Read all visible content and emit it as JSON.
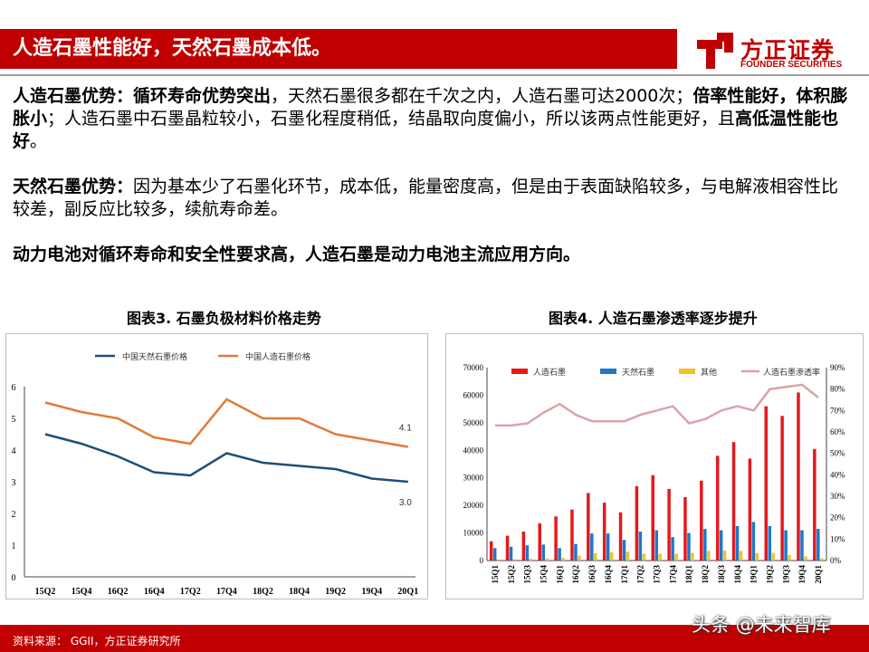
{
  "header": {
    "title": "人造石墨性能好，天然石墨成本低。",
    "logo_name": "方正证券",
    "logo_en": "FOUNDER SECURITIES"
  },
  "body": {
    "p1_b1": "人造石墨优势：",
    "p1_b2": "循环寿命优势突出",
    "p1_t1": "，天然石墨很多都在千次之内，人造石墨可达2000次；",
    "p1_b3": "倍率性能好，体积膨胀小",
    "p1_t2": "；人造石墨中石墨晶粒较小，石墨化程度稍低，结晶取向度偏小，所以该两点性能更好，且",
    "p1_b4": "高低温性能也好",
    "p1_t3": "。",
    "p2_b1": "天然石墨优势：",
    "p2_t1": "因为基本少了石墨化环节，成本低，能量密度高，但是由于表面缺陷较多，与电解液相容性比较差，副反应比较多，续航寿命差。",
    "p3_b1": "动力电池对循环寿命和安全性要求高，人造石墨是动力电池主流应用方向。"
  },
  "figure3": {
    "title": "图表3. 石墨负极材料价格走势"
  },
  "figure4": {
    "title": "图表4. 人造石墨渗透率逐步提升"
  },
  "footer": {
    "source": "资料来源： GGII，方正证券研究所",
    "watermark": "头条 @未来智库"
  },
  "colors": {
    "brand_red": "#c00000",
    "natural_line": "#1f4e79",
    "artificial_line": "#e07b39",
    "bar_artificial": "#e31a1c",
    "bar_natural": "#1f78c8",
    "bar_other": "#f2c12e",
    "penetration_line": "#d9a4a8"
  },
  "chart_data": [
    {
      "type": "line",
      "categories": [
        "15Q2",
        "15Q4",
        "16Q2",
        "16Q4",
        "17Q2",
        "17Q4",
        "18Q2",
        "18Q4",
        "19Q2",
        "19Q4",
        "20Q1"
      ],
      "series": [
        {
          "name": "中国天然石墨价格",
          "values": [
            4.5,
            4.2,
            3.8,
            3.3,
            3.2,
            3.9,
            3.6,
            3.5,
            3.4,
            3.1,
            3.0
          ]
        },
        {
          "name": "中国人造石墨价格",
          "values": [
            5.5,
            5.2,
            5.0,
            4.4,
            4.2,
            5.6,
            5.0,
            5.0,
            4.5,
            4.3,
            4.1
          ]
        }
      ],
      "ylim": [
        0,
        6
      ],
      "yticks": [
        "0",
        "1",
        "2",
        "3",
        "4",
        "5",
        "6"
      ],
      "end_labels": [
        "3.0",
        "4.1"
      ],
      "legend": "top",
      "grid": false
    },
    {
      "type": "bar",
      "categories": [
        "15Q1",
        "15Q2",
        "15Q3",
        "15Q4",
        "16Q1",
        "16Q2",
        "16Q3",
        "16Q4",
        "17Q1",
        "17Q2",
        "17Q3",
        "17Q4",
        "18Q1",
        "18Q2",
        "18Q3",
        "18Q4",
        "19Q1",
        "19Q2",
        "19Q3",
        "19Q4",
        "20Q1"
      ],
      "series": [
        {
          "name": "人造石墨",
          "type": "bar",
          "values": [
            7000,
            9000,
            10500,
            13500,
            16000,
            18500,
            24500,
            21000,
            17500,
            27000,
            31000,
            26000,
            23000,
            29000,
            38000,
            43000,
            37000,
            56000,
            52500,
            61000,
            40500
          ]
        },
        {
          "name": "天然石墨",
          "type": "bar",
          "values": [
            4500,
            5000,
            5500,
            5800,
            4500,
            6000,
            9800,
            9800,
            7500,
            10500,
            11000,
            8500,
            10000,
            11500,
            11000,
            12500,
            14000,
            12500,
            11000,
            11000,
            11500
          ]
        },
        {
          "name": "其他",
          "type": "bar",
          "values": [
            400,
            500,
            600,
            800,
            1000,
            1800,
            2700,
            3000,
            3200,
            2500,
            2500,
            2500,
            2800,
            3500,
            3600,
            3500,
            2700,
            2800,
            2000,
            1500,
            800
          ]
        },
        {
          "name": "人造石墨渗透率",
          "type": "line",
          "axis": "right",
          "values": [
            63,
            63,
            64,
            69,
            73,
            68,
            65,
            65,
            65,
            68,
            70,
            72,
            64,
            66,
            70,
            72,
            70,
            80,
            81,
            82,
            76
          ]
        }
      ],
      "ylim": [
        0,
        70000
      ],
      "yticks": [
        "0",
        "10000",
        "20000",
        "30000",
        "40000",
        "50000",
        "60000",
        "70000"
      ],
      "y2lim": [
        0,
        90
      ],
      "y2ticks": [
        "0%",
        "10%",
        "20%",
        "30%",
        "40%",
        "50%",
        "60%",
        "70%",
        "80%",
        "90%"
      ],
      "legend": "top",
      "grid": false
    }
  ]
}
